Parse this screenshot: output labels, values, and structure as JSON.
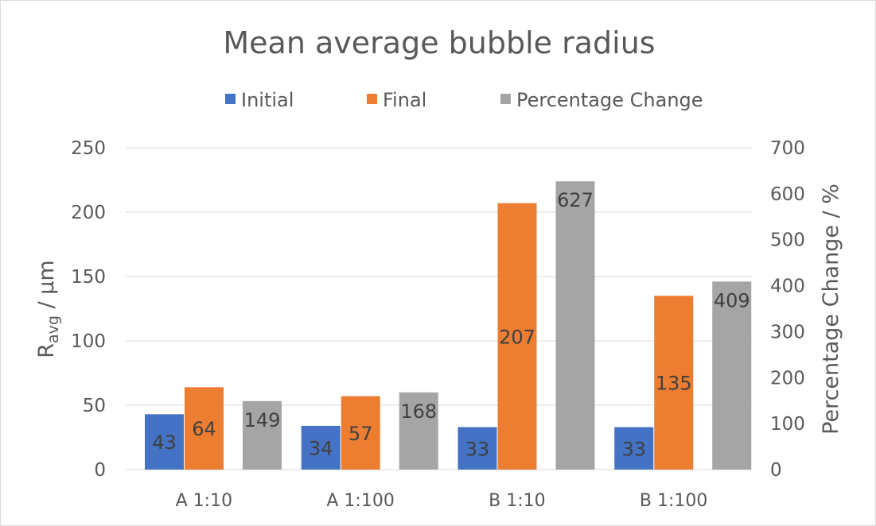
{
  "chart_data": {
    "type": "bar",
    "title": "Mean average bubble radius",
    "categories": [
      "A 1:10",
      "A 1:100",
      "B 1:10",
      "B 1:100"
    ],
    "series": [
      {
        "name": "Initial",
        "axis": "left",
        "color": "#4472C4",
        "values": [
          43,
          34,
          33,
          33
        ],
        "labels": [
          "43",
          "34",
          "33",
          "33"
        ]
      },
      {
        "name": "Final",
        "axis": "left",
        "color": "#ED7D31",
        "values": [
          64,
          57,
          207,
          135
        ],
        "labels": [
          "64",
          "57",
          "207",
          "135"
        ]
      },
      {
        "name": "Percentage Change",
        "axis": "right",
        "color": "#A5A5A5",
        "values": [
          149,
          168,
          627,
          409
        ],
        "labels": [
          "149",
          "168",
          "627",
          "409"
        ]
      }
    ],
    "y_left": {
      "label_main": "R",
      "label_sub": "avg",
      "label_rest": " / µm",
      "range": [
        0,
        250
      ],
      "ticks": [
        0,
        50,
        100,
        150,
        200,
        250
      ],
      "tick_labels": [
        "0",
        "50",
        "100",
        "150",
        "200",
        "250"
      ]
    },
    "y_right": {
      "label": "Percentage Change / %",
      "range": [
        0,
        700
      ],
      "ticks": [
        0,
        100,
        200,
        300,
        400,
        500,
        600,
        700
      ],
      "tick_labels": [
        "0",
        "100",
        "200",
        "300",
        "400",
        "500",
        "600",
        "700"
      ]
    },
    "grid": true,
    "legend_position": "top"
  }
}
